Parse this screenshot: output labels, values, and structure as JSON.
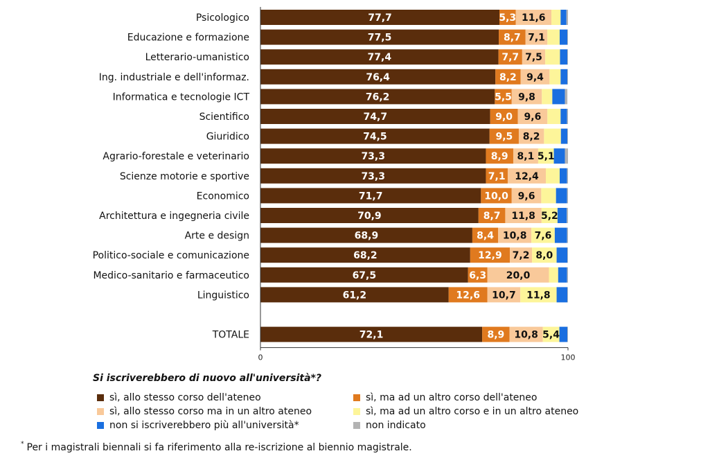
{
  "chart_data": {
    "type": "bar",
    "orientation": "horizontal",
    "stacked": true,
    "categories": [
      "Psicologico",
      "Educazione e formazione",
      "Letterario-umanistico",
      "Ing. industriale e dell'informaz.",
      "Informatica e tecnologie ICT",
      "Scientifico",
      "Giuridico",
      "Agrario-forestale e veterinario",
      "Scienze motorie e sportive",
      "Economico",
      "Architettura e ingegneria civile",
      "Arte e design",
      "Politico-sociale e comunicazione",
      "Medico-sanitario e farmaceutico",
      "Linguistico",
      "TOTALE"
    ],
    "series": [
      {
        "name": "sì, allo stesso corso dell'ateneo",
        "color": "#5a2d0c",
        "values": [
          77.7,
          77.5,
          77.4,
          76.4,
          76.2,
          74.7,
          74.5,
          73.3,
          73.3,
          71.7,
          70.9,
          68.9,
          68.2,
          67.5,
          61.2,
          72.1
        ]
      },
      {
        "name": "sì, ma ad un altro corso dell'ateneo",
        "color": "#e07a1f",
        "values": [
          5.3,
          8.7,
          7.7,
          8.2,
          5.5,
          9.0,
          9.5,
          8.9,
          7.1,
          10.0,
          8.7,
          8.4,
          12.9,
          6.3,
          12.6,
          8.9
        ]
      },
      {
        "name": "sì, allo stesso corso ma in un altro ateneo",
        "color": "#f9c99a",
        "values": [
          11.6,
          7.1,
          7.5,
          9.4,
          9.8,
          9.6,
          8.2,
          8.1,
          12.4,
          9.6,
          11.8,
          10.8,
          7.2,
          20.0,
          10.7,
          10.8
        ]
      },
      {
        "name": "sì, ma ad un altro corso e in un altro ateneo",
        "color": "#fdf59a",
        "values": [
          3.0,
          4.0,
          4.8,
          3.6,
          3.4,
          4.3,
          5.5,
          5.1,
          4.5,
          4.8,
          5.2,
          7.6,
          8.0,
          3.0,
          11.8,
          5.4
        ]
      },
      {
        "name": "non si iscriverebbero più all'università*",
        "color": "#1a6fe0",
        "values": [
          1.9,
          2.5,
          2.4,
          2.2,
          4.1,
          2.1,
          2.1,
          3.6,
          2.4,
          3.6,
          3.0,
          4.0,
          3.5,
          2.9,
          3.5,
          2.6
        ]
      },
      {
        "name": "non indicato",
        "color": "#b3b3b3",
        "values": [
          0.5,
          0.2,
          0.2,
          0.2,
          0.8,
          0.3,
          0.2,
          1.0,
          0.3,
          0.3,
          0.4,
          0.3,
          0.2,
          0.3,
          0.2,
          0.2
        ]
      }
    ],
    "data_labels": [
      [
        "77,7",
        "77,5",
        "77,4",
        "76,4",
        "76,2",
        "74,7",
        "74,5",
        "73,3",
        "73,3",
        "71,7",
        "70,9",
        "68,9",
        "68,2",
        "67,5",
        "61,2",
        "72,1"
      ],
      [
        "5,3",
        "8,7",
        "7,7",
        "8,2",
        "5,5",
        "9,0",
        "9,5",
        "8,9",
        "7,1",
        "10,0",
        "8,7",
        "8,4",
        "12,9",
        "6,3",
        "12,6",
        "8,9"
      ],
      [
        "11,6",
        "7,1",
        "7,5",
        "9,4",
        "9,8",
        "9,6",
        "8,2",
        "8,1",
        "12,4",
        "9,6",
        "11,8",
        "10,8",
        "7,2",
        "20,0",
        "10,7",
        "10,8"
      ],
      [
        "",
        "",
        "",
        "",
        "",
        "",
        "",
        "5,1",
        "",
        "",
        "5,2",
        "7,6",
        "8,0",
        "",
        "11,8",
        "5,4"
      ],
      [
        "",
        "",
        "",
        "",
        "",
        "",
        "",
        "",
        "",
        "",
        "",
        "",
        "",
        "",
        "",
        ""
      ],
      [
        "",
        "",
        "",
        "",
        "",
        "",
        "",
        "",
        "",
        "",
        "",
        "",
        "",
        "",
        "",
        ""
      ]
    ],
    "gap_before_last": true,
    "xlim": [
      0,
      100
    ],
    "xticks": [
      "0",
      "100"
    ],
    "grid": false,
    "legend_position": "bottom"
  },
  "legend": {
    "title": "Si iscriverebbero di nuovo all'università*?",
    "items": [
      "sì, allo stesso corso dell'ateneo",
      "sì, ma ad un altro corso dell'ateneo",
      "sì, allo stesso corso ma in un altro ateneo",
      "sì, ma ad un altro corso e in un altro ateneo",
      "non si iscriverebbero più all'università*",
      "non indicato"
    ]
  },
  "footnote": {
    "marker": "*",
    "text": "Per i magistrali biennali si fa riferimento alla re-iscrizione al biennio magistrale."
  }
}
